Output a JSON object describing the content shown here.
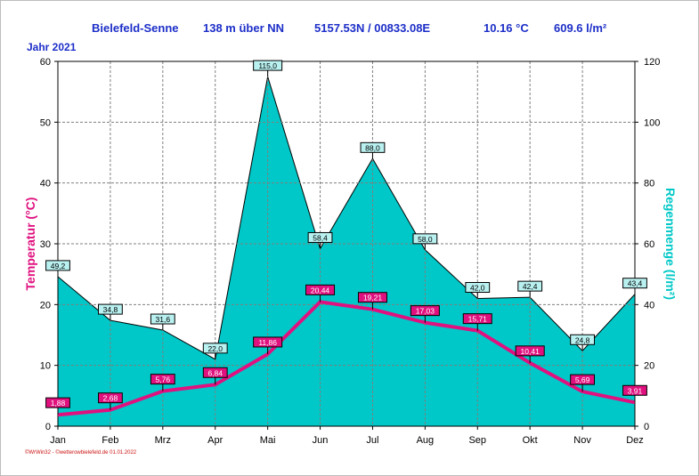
{
  "header": {
    "station": "Bielefeld-Senne",
    "altitude": "138 m über NN",
    "coordinates": "5157.53N / 00833.08E",
    "avg_temp": "10.16 °C",
    "precip_total": "609.6 l/m²",
    "year_label": "Jahr  2021"
  },
  "footer": "©WrWin32 - ©wetterowbielefeld.de  01.01.2022",
  "colors": {
    "temp": "#e0117f",
    "rain": "#00c8c8",
    "header": "#1c2ec8",
    "grid": "#7f7f7f"
  },
  "chart_data": {
    "type": "area",
    "categories": [
      "Jan",
      "Feb",
      "Mrz",
      "Apr",
      "Mai",
      "Jun",
      "Jul",
      "Aug",
      "Sep",
      "Okt",
      "Nov",
      "Dez"
    ],
    "series": [
      {
        "axis": "right",
        "type": "area",
        "values": [
          49.2,
          34.8,
          31.6,
          22.0,
          115.0,
          58.4,
          88.0,
          58.0,
          42.0,
          42.4,
          24.8,
          43.4
        ],
        "labels": [
          "49,2",
          "34,8",
          "31,6",
          "22,0",
          "115,0",
          "58,4",
          "88,0",
          "58,0",
          "42,0",
          "42,4",
          "24,8",
          "43,4"
        ]
      },
      {
        "axis": "left",
        "type": "line",
        "values": [
          1.88,
          2.68,
          5.76,
          6.84,
          11.86,
          20.44,
          19.21,
          17.03,
          15.71,
          10.41,
          5.69,
          3.91
        ],
        "labels": [
          "1,88",
          "2,68",
          "5,76",
          "6,84",
          "11,86",
          "20,44",
          "19,21",
          "17,03",
          "15,71",
          "10,41",
          "5,69",
          "3,91"
        ]
      }
    ],
    "ylabel_left": "Temperatur  (°C)",
    "ylabel_right": "Regenmenge  (l/m²)",
    "ylim_left": [
      0,
      60
    ],
    "ylim_right": [
      0,
      120
    ],
    "yticks_left": [
      "0",
      "10",
      "20",
      "30",
      "40",
      "50",
      "60"
    ],
    "yticks_right": [
      "0",
      "20",
      "40",
      "60",
      "80",
      "100",
      "120"
    ],
    "grid": true
  }
}
